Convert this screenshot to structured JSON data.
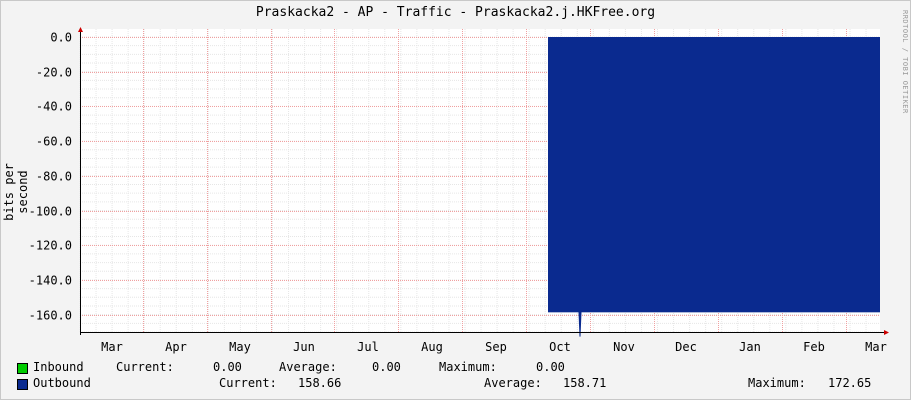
{
  "chart_data": {
    "type": "area",
    "title": "Praskacka2 - AP - Traffic - Praskacka2.j.HKFree.org",
    "side_text": "RRDTOOL / TOBI OETIKER",
    "ylabel": "bits per second",
    "ylim": [
      -170,
      0
    ],
    "y_ticks": [
      0,
      -20,
      -40,
      -60,
      -80,
      -100,
      -120,
      -140,
      -160
    ],
    "y_tick_labels": [
      "0.0",
      "-20.0",
      "-40.0",
      "-60.0",
      "-80.0",
      "-100.0",
      "-120.0",
      "-140.0",
      "-160.0"
    ],
    "x_ticks": [
      "Mar",
      "Apr",
      "May",
      "Jun",
      "Jul",
      "Aug",
      "Sep",
      "Oct",
      "Nov",
      "Dec",
      "Jan",
      "Feb",
      "Mar"
    ],
    "grid": true,
    "series": [
      {
        "name": "Outbound",
        "color": "#0a2a8f",
        "start_month_index": 7.25,
        "end_month_index": 12.0,
        "value": -158.66,
        "spike_month_index": 7.75,
        "spike_value": -172.65
      }
    ],
    "legend": [
      {
        "name": "Inbound",
        "color": "#00cc00",
        "current_label": "Current:",
        "current": "0.00",
        "average_label": "Average:",
        "average": "0.00",
        "maximum_label": "Maximum:",
        "maximum": "0.00"
      },
      {
        "name": "Outbound",
        "color": "#0a2a8f",
        "current_label": "Current:",
        "current": "158.66",
        "average_label": "Average:",
        "average": "158.71",
        "maximum_label": "Maximum:",
        "maximum": "172.65"
      }
    ]
  }
}
